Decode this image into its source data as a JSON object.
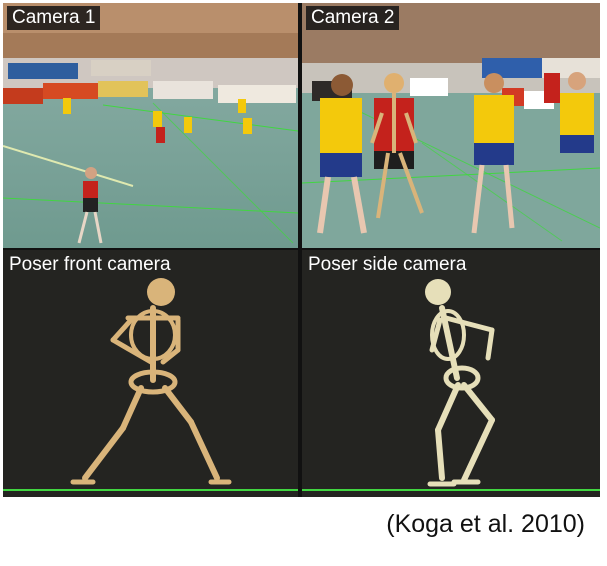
{
  "panels": {
    "camera1": {
      "label": "Camera 1"
    },
    "camera2": {
      "label": "Camera 2"
    },
    "poser_front": {
      "label": "Poser front camera"
    },
    "poser_side": {
      "label": "Poser side camera"
    }
  },
  "citation": "(Koga et al. 2010)",
  "colors": {
    "court_floor": "#7fa79c",
    "team_yellow": "#f3c90c",
    "team_red": "#c4221c",
    "skeleton_bone": "#d9b47a",
    "grid_line": "#41d641"
  }
}
